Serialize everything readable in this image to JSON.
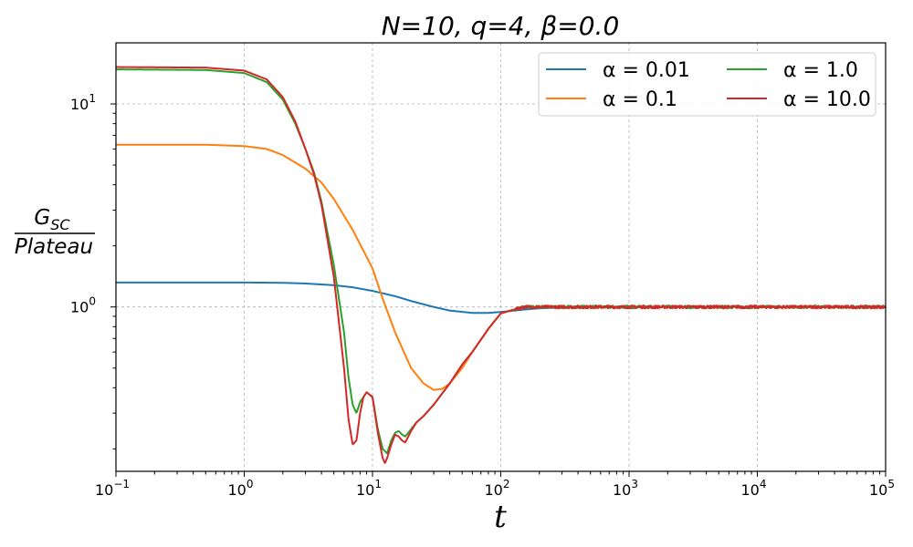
{
  "chart_data": {
    "type": "line",
    "title": "N=10, q=4, β=0.0",
    "xlabel": "t",
    "ylabel_numerator": "G_SC",
    "ylabel_denominator": "Plateau",
    "xscale": "log",
    "yscale": "log",
    "xlim": [
      0.1,
      100000
    ],
    "ylim": [
      0.155,
      20
    ],
    "grid": true,
    "legend_position": "top-right",
    "legend_columns": 2,
    "xticks": [
      {
        "value": 0.1,
        "base": "10",
        "exp": "−1"
      },
      {
        "value": 1,
        "base": "10",
        "exp": "0"
      },
      {
        "value": 10,
        "base": "10",
        "exp": "1"
      },
      {
        "value": 100,
        "base": "10",
        "exp": "2"
      },
      {
        "value": 1000,
        "base": "10",
        "exp": "3"
      },
      {
        "value": 10000,
        "base": "10",
        "exp": "4"
      },
      {
        "value": 100000,
        "base": "10",
        "exp": "5"
      }
    ],
    "yticks": [
      {
        "value": 1,
        "base": "10",
        "exp": "0"
      },
      {
        "value": 10,
        "base": "10",
        "exp": "1"
      }
    ],
    "series": [
      {
        "name": "α = 0.01",
        "color": "#1f77b4",
        "noise": 0,
        "points": [
          [
            0.1,
            1.32
          ],
          [
            0.5,
            1.32
          ],
          [
            1,
            1.32
          ],
          [
            2,
            1.315
          ],
          [
            3,
            1.305
          ],
          [
            5,
            1.28
          ],
          [
            7,
            1.25
          ],
          [
            10,
            1.2
          ],
          [
            15,
            1.13
          ],
          [
            20,
            1.07
          ],
          [
            30,
            1.0
          ],
          [
            40,
            0.96
          ],
          [
            60,
            0.935
          ],
          [
            80,
            0.935
          ],
          [
            100,
            0.945
          ],
          [
            150,
            0.97
          ],
          [
            200,
            0.985
          ],
          [
            300,
            0.995
          ],
          [
            500,
            1.0
          ],
          [
            100000,
            1.0
          ]
        ]
      },
      {
        "name": "α = 0.1",
        "color": "#ff7f0e",
        "noise": 0,
        "points": [
          [
            0.1,
            6.3
          ],
          [
            0.5,
            6.3
          ],
          [
            1,
            6.2
          ],
          [
            1.5,
            6.0
          ],
          [
            2,
            5.6
          ],
          [
            3,
            4.8
          ],
          [
            4,
            4.1
          ],
          [
            5,
            3.4
          ],
          [
            7,
            2.4
          ],
          [
            10,
            1.55
          ],
          [
            12,
            1.1
          ],
          [
            15,
            0.75
          ],
          [
            20,
            0.5
          ],
          [
            25,
            0.42
          ],
          [
            30,
            0.39
          ],
          [
            35,
            0.395
          ],
          [
            40,
            0.42
          ],
          [
            50,
            0.5
          ],
          [
            60,
            0.6
          ],
          [
            80,
            0.78
          ],
          [
            100,
            0.93
          ],
          [
            150,
            1.0
          ],
          [
            100000,
            1.0
          ]
        ]
      },
      {
        "name": "α = 1.0",
        "color": "#2ca02c",
        "noise": 0.018,
        "points": [
          [
            0.1,
            14.8
          ],
          [
            0.5,
            14.7
          ],
          [
            1,
            14.2
          ],
          [
            1.5,
            12.8
          ],
          [
            2,
            10.5
          ],
          [
            2.5,
            8.0
          ],
          [
            3,
            6.0
          ],
          [
            3.5,
            4.6
          ],
          [
            4,
            3.3
          ],
          [
            5,
            1.6
          ],
          [
            6,
            0.75
          ],
          [
            6.5,
            0.45
          ],
          [
            7,
            0.33
          ],
          [
            7.5,
            0.3
          ],
          [
            8,
            0.34
          ],
          [
            9,
            0.38
          ],
          [
            10,
            0.36
          ],
          [
            11,
            0.25
          ],
          [
            12,
            0.2
          ],
          [
            13,
            0.19
          ],
          [
            14,
            0.22
          ],
          [
            15,
            0.24
          ],
          [
            16,
            0.245
          ],
          [
            17,
            0.235
          ],
          [
            18,
            0.23
          ],
          [
            20,
            0.25
          ],
          [
            22,
            0.27
          ],
          [
            25,
            0.29
          ],
          [
            30,
            0.33
          ],
          [
            40,
            0.42
          ],
          [
            50,
            0.52
          ],
          [
            60,
            0.6
          ],
          [
            80,
            0.78
          ],
          [
            100,
            0.93
          ],
          [
            150,
            1.0
          ],
          [
            100000,
            1.0
          ]
        ]
      },
      {
        "name": "α = 10.0",
        "color": "#d62728",
        "noise": 0.018,
        "points": [
          [
            0.1,
            15.2
          ],
          [
            0.5,
            15.1
          ],
          [
            1,
            14.6
          ],
          [
            1.5,
            13.2
          ],
          [
            2,
            10.8
          ],
          [
            2.5,
            8.2
          ],
          [
            3,
            6.0
          ],
          [
            3.5,
            4.5
          ],
          [
            4,
            3.2
          ],
          [
            5,
            1.4
          ],
          [
            6,
            0.5
          ],
          [
            6.5,
            0.28
          ],
          [
            7,
            0.21
          ],
          [
            7.5,
            0.22
          ],
          [
            8,
            0.3
          ],
          [
            8.5,
            0.36
          ],
          [
            9,
            0.38
          ],
          [
            10,
            0.36
          ],
          [
            11,
            0.24
          ],
          [
            12,
            0.18
          ],
          [
            12.5,
            0.17
          ],
          [
            13,
            0.18
          ],
          [
            14,
            0.21
          ],
          [
            15,
            0.235
          ],
          [
            16,
            0.23
          ],
          [
            17,
            0.22
          ],
          [
            18,
            0.215
          ],
          [
            20,
            0.245
          ],
          [
            22,
            0.27
          ],
          [
            25,
            0.29
          ],
          [
            30,
            0.33
          ],
          [
            40,
            0.42
          ],
          [
            50,
            0.52
          ],
          [
            60,
            0.6
          ],
          [
            80,
            0.78
          ],
          [
            100,
            0.93
          ],
          [
            150,
            1.0
          ],
          [
            100000,
            1.0
          ]
        ]
      }
    ]
  }
}
